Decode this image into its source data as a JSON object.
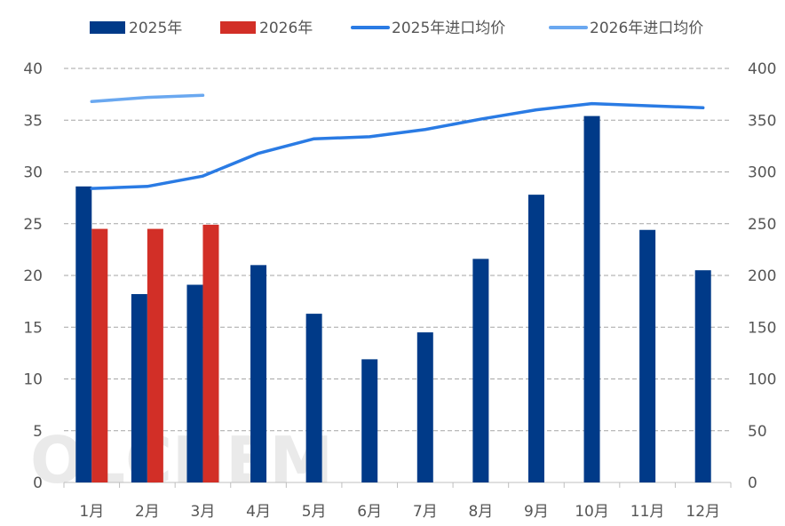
{
  "chart_data": {
    "type": "bar",
    "title": "",
    "watermark": "OLCHEM",
    "categories": [
      "1月",
      "2月",
      "3月",
      "4月",
      "5月",
      "6月",
      "7月",
      "8月",
      "9月",
      "10月",
      "11月",
      "12月"
    ],
    "left_axis": {
      "min": 0,
      "max": 40,
      "step": 5,
      "ticks": [
        "0",
        "5",
        "10",
        "15",
        "20",
        "25",
        "30",
        "35",
        "40"
      ]
    },
    "right_axis": {
      "min": 0,
      "max": 400,
      "step": 50,
      "ticks": [
        "0",
        "50",
        "100",
        "150",
        "200",
        "250",
        "300",
        "350",
        "400"
      ]
    },
    "bar_series": [
      {
        "name": "2025年",
        "color": "#003a88",
        "axis": "left",
        "values": [
          28.6,
          18.2,
          19.1,
          21.0,
          16.3,
          11.9,
          14.5,
          21.6,
          27.8,
          35.4,
          24.4,
          20.5
        ]
      },
      {
        "name": "2026年",
        "color": "#d22f27",
        "axis": "left",
        "values": [
          24.5,
          24.5,
          24.9
        ]
      }
    ],
    "line_series": [
      {
        "name": "2025年进口均价",
        "color": "#2a7be4",
        "axis": "right",
        "values": [
          284,
          286,
          296,
          318,
          332,
          334,
          341,
          351,
          360,
          366,
          364,
          362
        ]
      },
      {
        "name": "2026年进口均价",
        "color": "#6aa8f0",
        "axis": "right",
        "values": [
          368,
          372,
          374
        ]
      }
    ],
    "legend": {
      "position": "top",
      "items": [
        {
          "label": "2025年",
          "type": "bar",
          "color": "#003a88"
        },
        {
          "label": "2026年",
          "type": "bar",
          "color": "#d22f27"
        },
        {
          "label": "2025年进口均价",
          "type": "line",
          "color": "#2a7be4"
        },
        {
          "label": "2026年进口均价",
          "type": "line",
          "color": "#6aa8f0"
        }
      ]
    },
    "grid": true
  }
}
